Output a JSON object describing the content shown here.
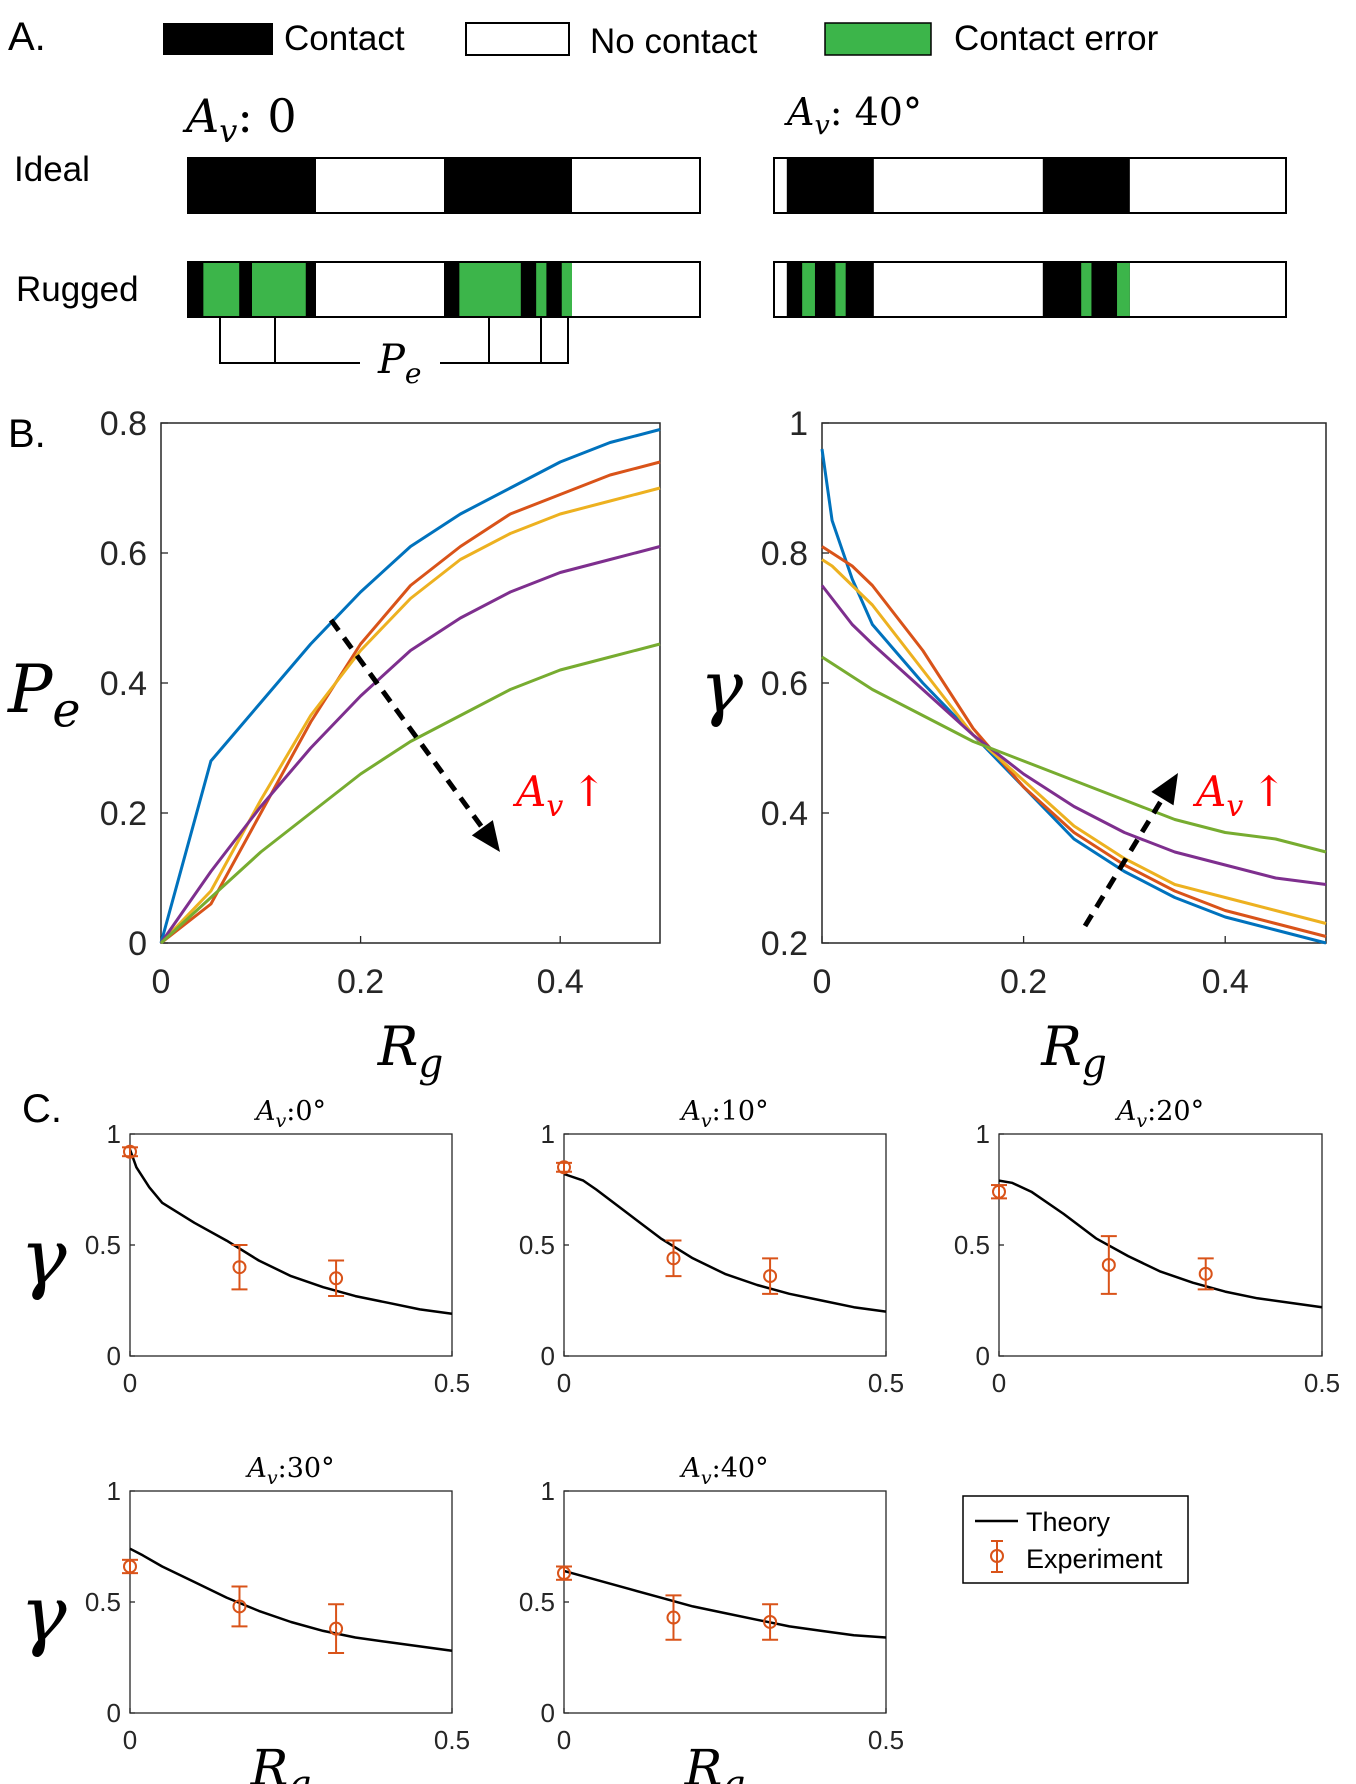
{
  "panel_a": {
    "label": "A.",
    "legend": {
      "contact": "Contact",
      "no_contact": "No contact",
      "contact_error": "Contact error"
    },
    "row_labels": [
      "Ideal",
      "Rugged"
    ],
    "columns": [
      {
        "title": "A_v: 0",
        "title_main": "A",
        "title_sub": "v",
        "title_rest": ": 0"
      },
      {
        "title": "A_v: 40°",
        "title_main": "A",
        "title_sub": "v",
        "title_rest": ": 40°"
      }
    ],
    "annotation": {
      "main": "P",
      "sub": "e"
    },
    "colors": {
      "contact": "#000000",
      "no_contact": "#ffffff",
      "contact_error": "#3cb54a"
    },
    "bars": {
      "ideal_0": [
        [
          "c",
          0.0,
          0.25
        ],
        [
          "c",
          0.5,
          0.75
        ]
      ],
      "rugged_0": [
        [
          "c",
          0.0,
          0.25
        ],
        [
          "e",
          0.03,
          0.1
        ],
        [
          "e",
          0.125,
          0.23
        ],
        [
          "c",
          0.5,
          0.75
        ],
        [
          "e",
          0.53,
          0.65
        ],
        [
          "e",
          0.68,
          0.7
        ],
        [
          "e",
          0.73,
          0.75
        ]
      ],
      "ideal_40": [
        [
          "c",
          0.025,
          0.195
        ],
        [
          "c",
          0.525,
          0.695
        ]
      ],
      "rugged_40": [
        [
          "c",
          0.025,
          0.195
        ],
        [
          "e",
          0.055,
          0.08
        ],
        [
          "e",
          0.12,
          0.14
        ],
        [
          "c",
          0.525,
          0.695
        ],
        [
          "e",
          0.6,
          0.62
        ],
        [
          "e",
          0.67,
          0.695
        ]
      ]
    }
  },
  "panel_b": {
    "label": "B."
  },
  "panel_c": {
    "label": "C."
  },
  "legend_c": {
    "theory": "Theory",
    "experiment": "Experiment"
  },
  "chart_data": [
    {
      "id": "B-left",
      "type": "line",
      "xlabel": "R_g",
      "ylabel": "P_e",
      "xlim": [
        0,
        0.5
      ],
      "ylim": [
        0,
        0.8
      ],
      "xticks": [
        "0",
        "0.2",
        "0.4"
      ],
      "yticks": [
        "0",
        "0.2",
        "0.4",
        "0.6",
        "0.8"
      ],
      "annotation": "A_v ↑",
      "x": [
        0,
        0.05,
        0.1,
        0.15,
        0.2,
        0.25,
        0.3,
        0.35,
        0.4,
        0.45,
        0.5
      ],
      "series": [
        {
          "color": "#0072bd",
          "values": [
            0.0,
            0.28,
            0.37,
            0.46,
            0.54,
            0.61,
            0.66,
            0.7,
            0.74,
            0.77,
            0.79
          ]
        },
        {
          "color": "#d95319",
          "values": [
            0.0,
            0.06,
            0.2,
            0.34,
            0.46,
            0.55,
            0.61,
            0.66,
            0.69,
            0.72,
            0.74
          ]
        },
        {
          "color": "#edb120",
          "values": [
            0.0,
            0.08,
            0.22,
            0.35,
            0.45,
            0.53,
            0.59,
            0.63,
            0.66,
            0.68,
            0.7
          ]
        },
        {
          "color": "#7e2f8e",
          "values": [
            0.0,
            0.11,
            0.21,
            0.3,
            0.38,
            0.45,
            0.5,
            0.54,
            0.57,
            0.59,
            0.61
          ]
        },
        {
          "color": "#77ac30",
          "values": [
            0.0,
            0.07,
            0.14,
            0.2,
            0.26,
            0.31,
            0.35,
            0.39,
            0.42,
            0.44,
            0.46
          ]
        }
      ]
    },
    {
      "id": "B-right",
      "type": "line",
      "xlabel": "R_g",
      "ylabel": "γ",
      "xlim": [
        0,
        0.5
      ],
      "ylim": [
        0.2,
        1
      ],
      "xticks": [
        "0",
        "0.2",
        "0.4"
      ],
      "yticks": [
        "0.2",
        "0.4",
        "0.6",
        "0.8",
        "1"
      ],
      "annotation": "A_v ↑",
      "x": [
        0,
        0.01,
        0.03,
        0.05,
        0.1,
        0.15,
        0.2,
        0.25,
        0.3,
        0.35,
        0.4,
        0.45,
        0.5
      ],
      "series": [
        {
          "color": "#0072bd",
          "values": [
            0.96,
            0.85,
            0.76,
            0.69,
            0.6,
            0.52,
            0.44,
            0.36,
            0.31,
            0.27,
            0.24,
            0.22,
            0.2
          ]
        },
        {
          "color": "#d95319",
          "values": [
            0.81,
            0.8,
            0.78,
            0.75,
            0.65,
            0.53,
            0.44,
            0.37,
            0.32,
            0.28,
            0.25,
            0.23,
            0.21
          ]
        },
        {
          "color": "#edb120",
          "values": [
            0.79,
            0.78,
            0.75,
            0.72,
            0.62,
            0.52,
            0.45,
            0.38,
            0.33,
            0.29,
            0.27,
            0.25,
            0.23
          ]
        },
        {
          "color": "#7e2f8e",
          "values": [
            0.75,
            0.73,
            0.69,
            0.66,
            0.59,
            0.52,
            0.46,
            0.41,
            0.37,
            0.34,
            0.32,
            0.3,
            0.29
          ]
        },
        {
          "color": "#77ac30",
          "values": [
            0.64,
            0.63,
            0.61,
            0.59,
            0.55,
            0.51,
            0.48,
            0.45,
            0.42,
            0.39,
            0.37,
            0.36,
            0.34
          ]
        }
      ]
    },
    {
      "id": "C-0",
      "type": "line",
      "title": "A_v:0°",
      "xlim": [
        0,
        0.5
      ],
      "ylim": [
        0,
        1
      ],
      "xticks": [
        "0",
        "0.5"
      ],
      "yticks": [
        "0",
        "0.5",
        "1"
      ],
      "ylabel": "γ",
      "xlabel": "",
      "theory": {
        "x": [
          0,
          0.01,
          0.03,
          0.05,
          0.1,
          0.15,
          0.2,
          0.25,
          0.3,
          0.35,
          0.4,
          0.45,
          0.5
        ],
        "y": [
          0.93,
          0.85,
          0.76,
          0.69,
          0.6,
          0.52,
          0.43,
          0.36,
          0.31,
          0.27,
          0.24,
          0.21,
          0.19
        ]
      },
      "experiment": {
        "x": [
          0,
          0.17,
          0.32
        ],
        "y": [
          0.92,
          0.4,
          0.35
        ],
        "err": [
          0.02,
          0.1,
          0.08
        ]
      }
    },
    {
      "id": "C-10",
      "type": "line",
      "title": "A_v:10°",
      "xlim": [
        0,
        0.5
      ],
      "ylim": [
        0,
        1
      ],
      "xticks": [
        "0",
        "0.5"
      ],
      "yticks": [
        "0",
        "0.5",
        "1"
      ],
      "ylabel": "",
      "xlabel": "",
      "theory": {
        "x": [
          0,
          0.03,
          0.05,
          0.1,
          0.15,
          0.2,
          0.25,
          0.3,
          0.35,
          0.4,
          0.45,
          0.5
        ],
        "y": [
          0.82,
          0.79,
          0.75,
          0.64,
          0.53,
          0.44,
          0.37,
          0.32,
          0.28,
          0.25,
          0.22,
          0.2
        ]
      },
      "experiment": {
        "x": [
          0,
          0.17,
          0.32
        ],
        "y": [
          0.85,
          0.44,
          0.36
        ],
        "err": [
          0.02,
          0.08,
          0.08
        ]
      }
    },
    {
      "id": "C-20",
      "type": "line",
      "title": "A_v:20°",
      "xlim": [
        0,
        0.5
      ],
      "ylim": [
        0,
        1
      ],
      "xticks": [
        "0",
        "0.5"
      ],
      "yticks": [
        "0",
        "0.5",
        "1"
      ],
      "ylabel": "",
      "xlabel": "",
      "theory": {
        "x": [
          0,
          0.02,
          0.05,
          0.1,
          0.15,
          0.2,
          0.25,
          0.3,
          0.35,
          0.4,
          0.45,
          0.5
        ],
        "y": [
          0.79,
          0.78,
          0.74,
          0.64,
          0.53,
          0.45,
          0.38,
          0.33,
          0.29,
          0.26,
          0.24,
          0.22
        ]
      },
      "experiment": {
        "x": [
          0,
          0.17,
          0.32
        ],
        "y": [
          0.74,
          0.41,
          0.37
        ],
        "err": [
          0.03,
          0.13,
          0.07
        ]
      }
    },
    {
      "id": "C-30",
      "type": "line",
      "title": "A_v:30°",
      "xlim": [
        0,
        0.5
      ],
      "ylim": [
        0,
        1
      ],
      "xticks": [
        "0",
        "0.5"
      ],
      "yticks": [
        "0",
        "0.5",
        "1"
      ],
      "ylabel": "γ",
      "xlabel": "R_g",
      "theory": {
        "x": [
          0,
          0.02,
          0.05,
          0.1,
          0.15,
          0.2,
          0.25,
          0.3,
          0.35,
          0.4,
          0.45,
          0.5
        ],
        "y": [
          0.74,
          0.71,
          0.66,
          0.59,
          0.52,
          0.46,
          0.41,
          0.37,
          0.34,
          0.32,
          0.3,
          0.28
        ]
      },
      "experiment": {
        "x": [
          0,
          0.17,
          0.32
        ],
        "y": [
          0.66,
          0.48,
          0.38
        ],
        "err": [
          0.03,
          0.09,
          0.11
        ]
      }
    },
    {
      "id": "C-40",
      "type": "line",
      "title": "A_v:40°",
      "xlim": [
        0,
        0.5
      ],
      "ylim": [
        0,
        1
      ],
      "xticks": [
        "0",
        "0.5"
      ],
      "yticks": [
        "0",
        "0.5",
        "1"
      ],
      "ylabel": "",
      "xlabel": "R_g",
      "theory": {
        "x": [
          0,
          0.05,
          0.1,
          0.15,
          0.2,
          0.25,
          0.3,
          0.35,
          0.4,
          0.45,
          0.5
        ],
        "y": [
          0.64,
          0.6,
          0.56,
          0.52,
          0.48,
          0.45,
          0.42,
          0.39,
          0.37,
          0.35,
          0.34
        ]
      },
      "experiment": {
        "x": [
          0,
          0.17,
          0.32
        ],
        "y": [
          0.63,
          0.43,
          0.41
        ],
        "err": [
          0.03,
          0.1,
          0.08
        ]
      }
    }
  ]
}
